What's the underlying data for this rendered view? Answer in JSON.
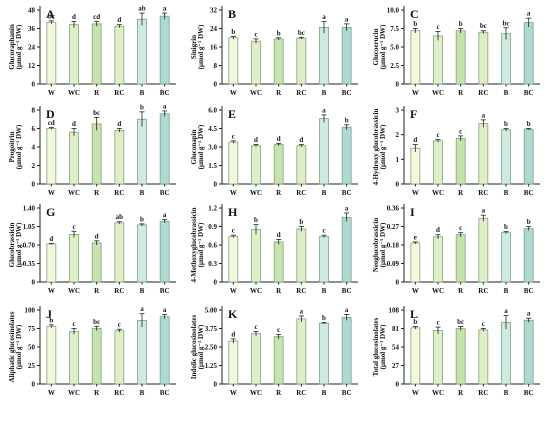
{
  "categories": [
    "W",
    "WC",
    "R",
    "RC",
    "B",
    "BC"
  ],
  "colors": {
    "W": "#f1f8dc",
    "WC": "#dff0c8",
    "R": "#c8e2ad",
    "RC": "#e0edc6",
    "B": "#cfeae2",
    "BC": "#acd9d6",
    "edge": "#7da67a",
    "axis": "#222222"
  },
  "chart_data": [
    {
      "type": "bar",
      "panel": "A",
      "ylabel": "Glucoraphanin",
      "yunit": "(μmol g⁻¹ DW)",
      "ylim": [
        0,
        48
      ],
      "yticks": [
        0,
        12,
        24,
        36,
        48
      ],
      "values": [
        40,
        38.5,
        39,
        37.5,
        42,
        44
      ],
      "errors": [
        1,
        2,
        1.5,
        1,
        4,
        2
      ],
      "letters": [
        "bc",
        "d",
        "cd",
        "d",
        "ab",
        "a"
      ]
    },
    {
      "type": "bar",
      "panel": "B",
      "ylabel": "Sinigrin",
      "yunit": "(μmol g⁻¹ DW)",
      "ylim": [
        0,
        32
      ],
      "yticks": [
        0,
        8,
        16,
        24,
        32
      ],
      "values": [
        20,
        18.5,
        19.5,
        19.8,
        24.5,
        24.5
      ],
      "errors": [
        0.6,
        1,
        0.5,
        0.4,
        2.5,
        1.5
      ],
      "letters": [
        "b",
        "c",
        "b",
        "bc",
        "a",
        "a"
      ]
    },
    {
      "type": "bar",
      "panel": "C",
      "ylabel": "Glucoerucin",
      "yunit": "(μmol g⁻¹ DW)",
      "ylim": [
        0,
        10
      ],
      "yticks": [
        0,
        2.5,
        5.0,
        7.5,
        10.0
      ],
      "values": [
        7.2,
        6.5,
        7.2,
        7.0,
        6.8,
        8.3
      ],
      "errors": [
        0.3,
        0.6,
        0.3,
        0.2,
        0.8,
        0.6
      ],
      "letters": [
        "b",
        "c",
        "b",
        "bc",
        "bc",
        "a"
      ]
    },
    {
      "type": "bar",
      "panel": "D",
      "ylabel": "Progoitrin",
      "yunit": "(μmol g⁻¹ DW)",
      "ylim": [
        0,
        8
      ],
      "yticks": [
        0,
        2,
        4,
        6,
        8
      ],
      "values": [
        6.0,
        5.6,
        6.5,
        5.8,
        7.0,
        7.6
      ],
      "errors": [
        0.1,
        0.4,
        0.7,
        0.2,
        0.8,
        0.3
      ],
      "letters": [
        "cd",
        "d",
        "bc",
        "d",
        "b",
        "a"
      ]
    },
    {
      "type": "bar",
      "panel": "E",
      "ylabel": "Gluconapin",
      "yunit": "(μmol g⁻¹ DW)",
      "ylim": [
        0,
        6
      ],
      "yticks": [
        0,
        1.5,
        3.0,
        4.5,
        6.0
      ],
      "values": [
        3.4,
        3.1,
        3.2,
        3.1,
        5.3,
        4.6
      ],
      "errors": [
        0.1,
        0.1,
        0.1,
        0.1,
        0.3,
        0.2
      ],
      "letters": [
        "c",
        "d",
        "d",
        "d",
        "a",
        "b"
      ]
    },
    {
      "type": "bar",
      "panel": "F",
      "ylabel": "4-Hydroxy glucobrassicin",
      "yunit": "(μmol g⁻¹ DW)",
      "ylim": [
        0,
        3
      ],
      "yticks": [
        0,
        1,
        2,
        3
      ],
      "values": [
        1.45,
        1.75,
        1.85,
        2.45,
        2.2,
        2.22
      ],
      "errors": [
        0.15,
        0.05,
        0.1,
        0.15,
        0.05,
        0.03
      ],
      "letters": [
        "d",
        "c",
        "c",
        "a",
        "b",
        "b"
      ]
    },
    {
      "type": "bar",
      "panel": "G",
      "ylabel": "Glucobrassicin",
      "yunit": "(μmol g⁻¹ DW)",
      "ylim": [
        0,
        1.4
      ],
      "yticks": [
        0,
        0.35,
        0.7,
        1.05,
        1.4
      ],
      "values": [
        0.72,
        0.9,
        0.74,
        1.12,
        1.08,
        1.15
      ],
      "errors": [
        0.01,
        0.06,
        0.04,
        0.02,
        0.02,
        0.03
      ],
      "letters": [
        "d",
        "c",
        "d",
        "ab",
        "b",
        "a"
      ]
    },
    {
      "type": "bar",
      "panel": "H",
      "ylabel": "4-Methoxyglucobrassicin",
      "yunit": "(μmol g⁻¹ DW)",
      "ylim": [
        0,
        1.2
      ],
      "yticks": [
        0,
        0.3,
        0.6,
        0.9,
        1.2
      ],
      "values": [
        0.74,
        0.85,
        0.65,
        0.86,
        0.74,
        1.05
      ],
      "errors": [
        0.02,
        0.08,
        0.04,
        0.04,
        0.02,
        0.07
      ],
      "letters": [
        "c",
        "b",
        "d",
        "b",
        "c",
        "a"
      ]
    },
    {
      "type": "bar",
      "panel": "I",
      "ylabel": "Neoglucobrassicin",
      "yunit": "(μmol g⁻¹ DW)",
      "ylim": [
        0,
        0.36
      ],
      "yticks": [
        0,
        0.09,
        0.18,
        0.27,
        0.36
      ],
      "values": [
        0.19,
        0.22,
        0.23,
        0.31,
        0.24,
        0.26
      ],
      "errors": [
        0.005,
        0.01,
        0.01,
        0.015,
        0.005,
        0.01
      ],
      "letters": [
        "e",
        "d",
        "c",
        "a",
        "b",
        "b"
      ]
    },
    {
      "type": "bar",
      "panel": "J",
      "ylabel": "Aliphatic glucosinolates",
      "yunit": "(μmol g⁻¹ DW)",
      "ylim": [
        0,
        100
      ],
      "yticks": [
        0,
        25,
        50,
        75,
        100
      ],
      "values": [
        78,
        71,
        75,
        72,
        86,
        91
      ],
      "errors": [
        2,
        4,
        3,
        2,
        9,
        3
      ],
      "letters": [
        "b",
        "c",
        "bc",
        "c",
        "a",
        "a"
      ]
    },
    {
      "type": "bar",
      "panel": "K",
      "ylabel": "Indolic glucosinolates",
      "yunit": "(μmol g⁻¹ DW)",
      "ylim": [
        0,
        5
      ],
      "yticks": [
        0,
        1.25,
        2.5,
        3.75,
        5.0
      ],
      "values": [
        2.9,
        3.4,
        3.2,
        4.4,
        4.1,
        4.5
      ],
      "errors": [
        0.15,
        0.15,
        0.15,
        0.2,
        0.05,
        0.2
      ],
      "letters": [
        "d",
        "c",
        "c",
        "a",
        "b",
        "a"
      ]
    },
    {
      "type": "bar",
      "panel": "L",
      "ylabel": "Total glucosinolates",
      "yunit": "(μmol g⁻¹ DW)",
      "ylim": [
        0,
        108
      ],
      "yticks": [
        0,
        27,
        54,
        81,
        108
      ],
      "values": [
        82,
        78,
        81,
        79,
        90,
        93
      ],
      "errors": [
        2,
        5,
        3,
        2,
        10,
        3
      ],
      "letters": [
        "b",
        "c",
        "bc",
        "c",
        "a",
        "a"
      ]
    }
  ]
}
